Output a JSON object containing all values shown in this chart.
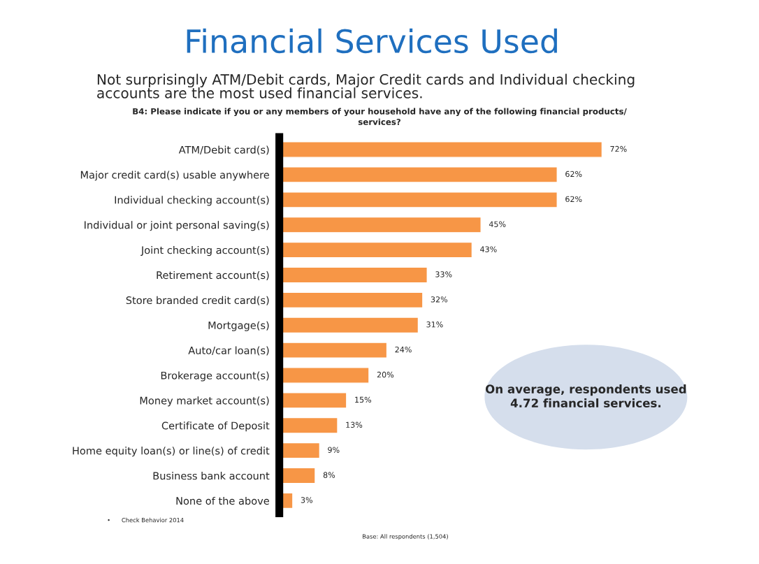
{
  "chart_data": {
    "type": "bar",
    "orientation": "horizontal",
    "title": "Financial Services Used",
    "subtitle": "Not surprisingly ATM/Debit cards, Major Credit cards and Individual checking\naccounts are the most used financial services.",
    "categories": [
      "ATM/Debit card(s)",
      "Major credit card(s) usable anywhere",
      "Individual checking account(s)",
      "Individual or joint personal saving(s)",
      "Joint checking account(s)",
      "Retirement account(s)",
      "Store branded credit card(s)",
      "Mortgage(s)",
      "Auto/car loan(s)",
      "Brokerage account(s)",
      "Money market account(s)",
      "Certificate of Deposit",
      "Home equity loan(s) or line(s) of credit",
      "Business bank account",
      "None of the above"
    ],
    "values": [
      72,
      62,
      62,
      45,
      43,
      33,
      32,
      31,
      24,
      20,
      15,
      13,
      9,
      8,
      3
    ],
    "value_labels": [
      "72%",
      "62%",
      "62%",
      "45%",
      "43%",
      "33%",
      "32%",
      "31%",
      "24%",
      "20%",
      "15%",
      "13%",
      "9%",
      "8%",
      "3%"
    ],
    "color": "#f79646",
    "tick_labels": "y",
    "grid": false,
    "legend": false,
    "annotations": [
      "B4: Please indicate if you or any members of your household have any of the following financial products/\nservices?",
      "On average, respondents used\n4.72 financial services.",
      "•      Check Behavior 2014",
      "Base: All respondents (1,504)"
    ]
  }
}
